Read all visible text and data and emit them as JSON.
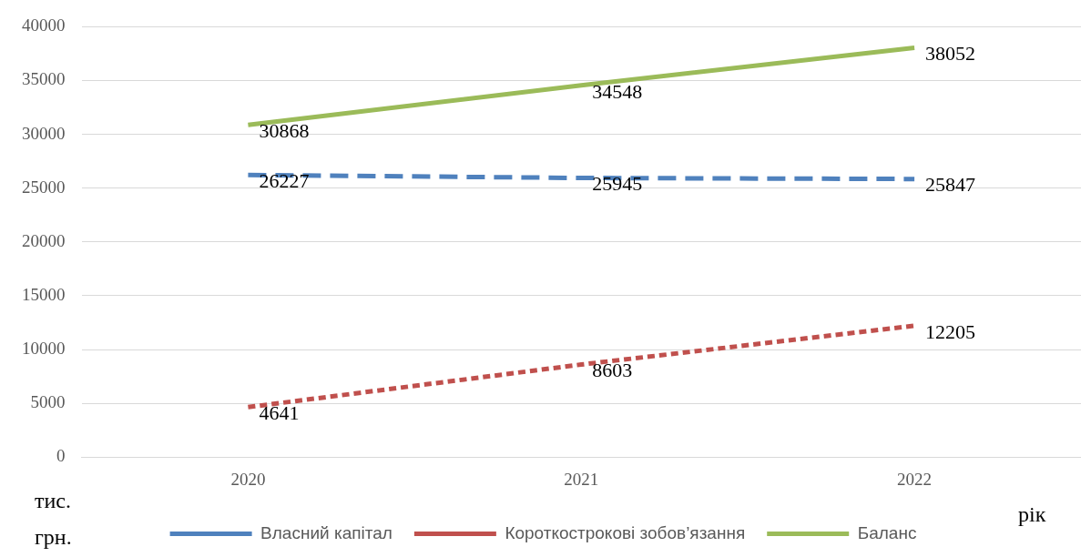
{
  "chart_data": {
    "type": "line",
    "xlabel": "рік",
    "ylabel": "тис. грн.",
    "categories": [
      "2020",
      "2021",
      "2022"
    ],
    "series": [
      {
        "name": "Власний капітал",
        "color": "#4f81bd",
        "values": [
          26227,
          25945,
          25847
        ],
        "line_style": "dashed"
      },
      {
        "name": "Короткострокові зобов’язання",
        "color": "#c0504d",
        "values": [
          4641,
          8603,
          12205
        ],
        "line_style": "dotted"
      },
      {
        "name": "Баланс",
        "color": "#9bbb59",
        "values": [
          30868,
          34548,
          38052
        ],
        "line_style": "solid"
      }
    ],
    "ylim": [
      0,
      40000
    ],
    "yticks": [
      0,
      5000,
      10000,
      15000,
      20000,
      25000,
      30000,
      35000,
      40000
    ],
    "grid": "y",
    "legend": "bottom",
    "marker": "none",
    "data_labels": true
  }
}
